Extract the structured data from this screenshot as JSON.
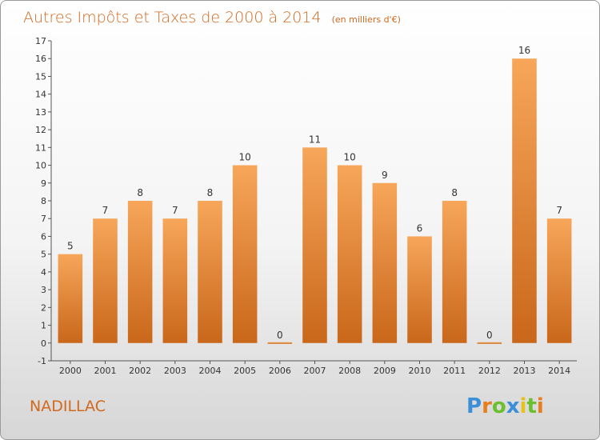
{
  "chart_data": {
    "type": "bar",
    "title": "Autres Impôts et Taxes de 2000 à 2014",
    "subtitle": "(en milliers d'€)",
    "categories": [
      "2000",
      "2001",
      "2002",
      "2003",
      "2004",
      "2005",
      "2006",
      "2007",
      "2008",
      "2009",
      "2010",
      "2011",
      "2012",
      "2013",
      "2014"
    ],
    "values": [
      5,
      7,
      8,
      7,
      8,
      10,
      0,
      11,
      10,
      9,
      6,
      8,
      0,
      16,
      7
    ],
    "ylim": [
      -1,
      17
    ],
    "yticks": [
      -1,
      0,
      1,
      2,
      3,
      4,
      5,
      6,
      7,
      8,
      9,
      10,
      11,
      12,
      13,
      14,
      15,
      16,
      17
    ],
    "xlabel": "",
    "ylabel": "",
    "grid": false,
    "bar_color_top": "#f7a65a",
    "bar_color_bottom": "#c9671a"
  },
  "footer": {
    "town": "NADILLAC",
    "logo": "Proxiti"
  },
  "colors": {
    "title": "#d2691e",
    "town": "#d2691e",
    "axis": "#555555"
  }
}
